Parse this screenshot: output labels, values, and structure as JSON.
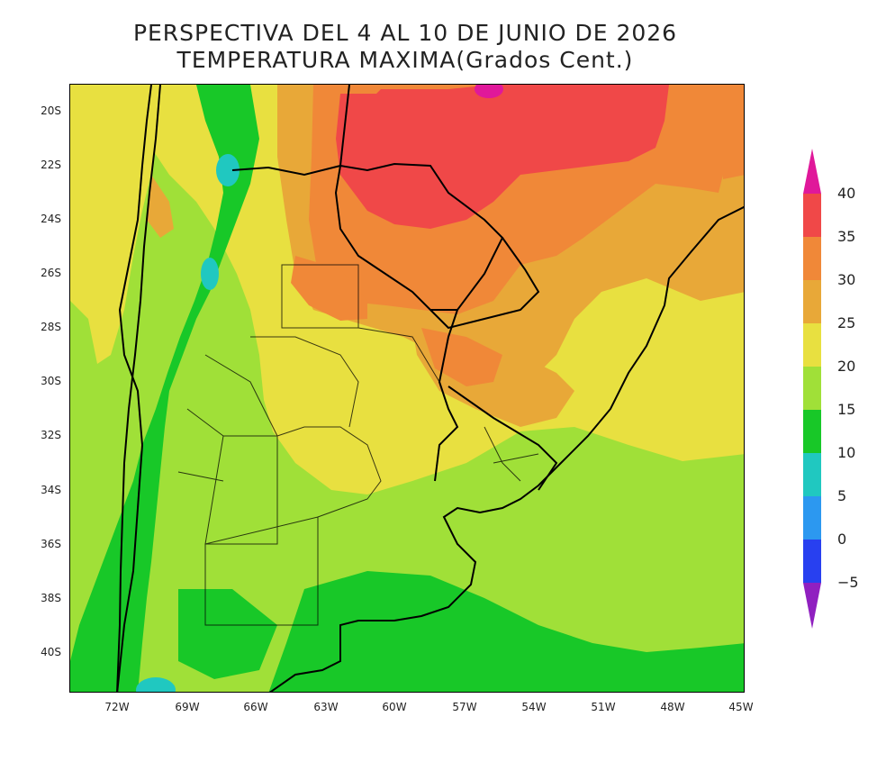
{
  "title": {
    "line1": "PERSPECTIVA DEL 4 AL 10 DE JUNIO DE 2026",
    "line2": "TEMPERATURA MAXIMA(Grados Cent.)"
  },
  "axes": {
    "lat_labels": [
      "20S",
      "22S",
      "24S",
      "26S",
      "28S",
      "30S",
      "32S",
      "34S",
      "36S",
      "38S",
      "40S"
    ],
    "lon_labels": [
      "72W",
      "69W",
      "66W",
      "63W",
      "60W",
      "57W",
      "54W",
      "51W",
      "48W",
      "45W"
    ]
  },
  "colorbar": {
    "levels": [
      "40",
      "35",
      "30",
      "25",
      "20",
      "15",
      "10",
      "5",
      "0",
      "−5"
    ],
    "colors": {
      "above40": "#e0189a",
      "35_40": "#f04848",
      "30_35": "#f08838",
      "25_30": "#e8a838",
      "20_25": "#e8e040",
      "15_20": "#a0e038",
      "10_15": "#18c828",
      "5_10": "#20c8c0",
      "0_5": "#2c98f0",
      "m5_0": "#2840f0",
      "below_m5": "#9020c0"
    }
  }
}
